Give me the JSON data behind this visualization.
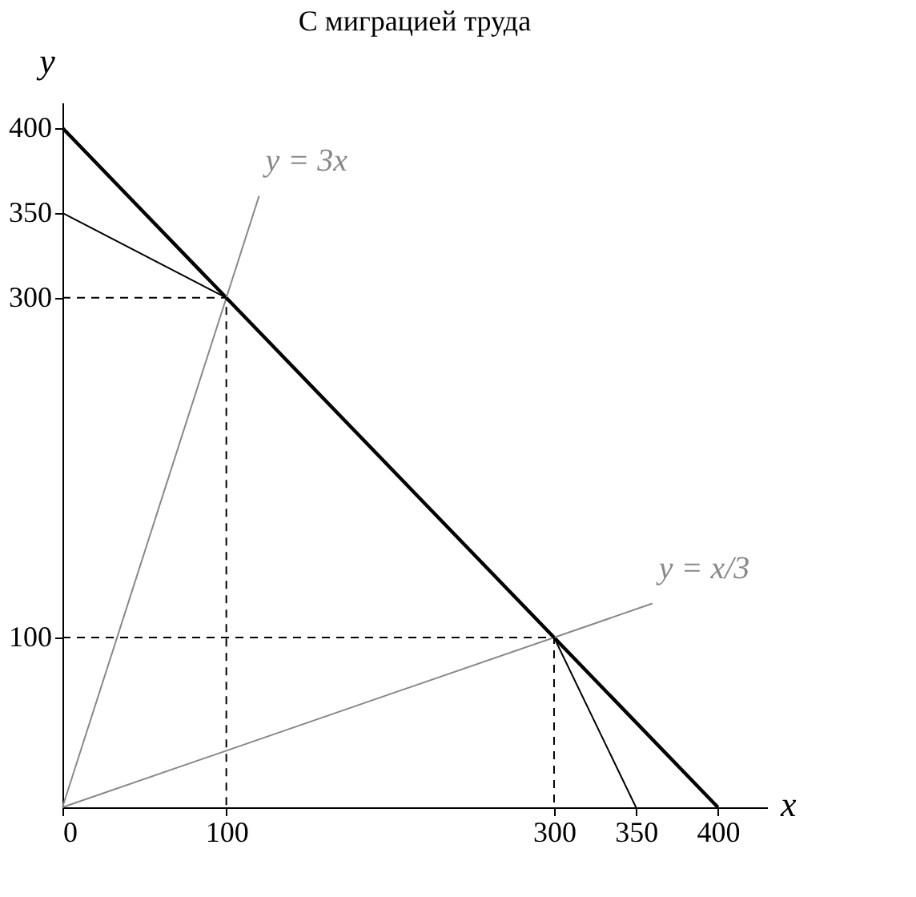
{
  "chart_data": {
    "type": "line",
    "title": "С миграцией труда",
    "xlabel": "x",
    "ylabel": "y",
    "series": [
      {
        "x": [
          0,
          400
        ],
        "values": [
          400,
          0
        ],
        "color": "#000000"
      },
      {
        "x": [
          0,
          100,
          300,
          350
        ],
        "values": [
          350,
          300,
          100,
          0
        ],
        "color": "#000000"
      },
      {
        "x": [
          0,
          120
        ],
        "values": [
          0,
          360
        ],
        "color": "#888888"
      },
      {
        "x": [
          0,
          360
        ],
        "values": [
          0,
          120
        ],
        "color": "#888888"
      },
      {
        "x": [
          0,
          100,
          100
        ],
        "values": [
          300,
          300,
          0
        ],
        "color": "#000000",
        "line_style": "dashed"
      },
      {
        "x": [
          0,
          300,
          300
        ],
        "values": [
          100,
          100,
          0
        ],
        "color": "#000000",
        "line_style": "dashed"
      }
    ],
    "annotations": [
      "y = 3x",
      "y = x/3"
    ],
    "xlim": [
      0,
      430
    ],
    "ylim": [
      0,
      415
    ],
    "xticks": [
      0,
      100,
      300,
      350,
      400
    ],
    "yticks": [
      100,
      300,
      350,
      400
    ],
    "grid": false,
    "marker": "none",
    "line_style": "solid"
  }
}
